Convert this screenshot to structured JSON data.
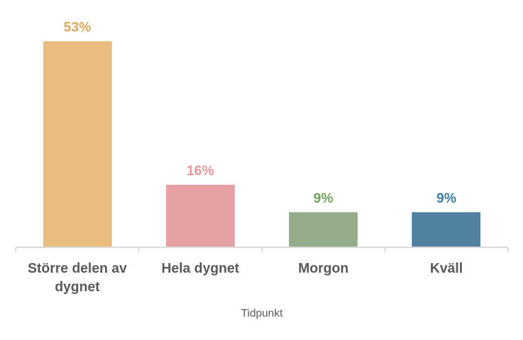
{
  "chart_data": {
    "type": "bar",
    "categories": [
      "Större delen av dygnet",
      "Hela dygnet",
      "Morgon",
      "Kväll"
    ],
    "values": [
      53,
      16,
      9,
      9
    ],
    "data_labels": [
      "53%",
      "16%",
      "9%",
      "9%"
    ],
    "bar_colors": [
      "#e9bd7f",
      "#e6a1a4",
      "#95ad8a",
      "#5081a1"
    ],
    "data_label_colors": [
      "#dfa860",
      "#e3989e",
      "#72a05f",
      "#3e7ca2"
    ],
    "title": "",
    "xlabel": "Tidpunkt",
    "ylabel": "",
    "ylim": [
      0,
      60
    ],
    "grid": false,
    "legend": false,
    "axis_line_color": "#d9d9d9",
    "category_label_color": "#595959",
    "xlabel_color": "#595959",
    "background_color": "#ffffff"
  }
}
